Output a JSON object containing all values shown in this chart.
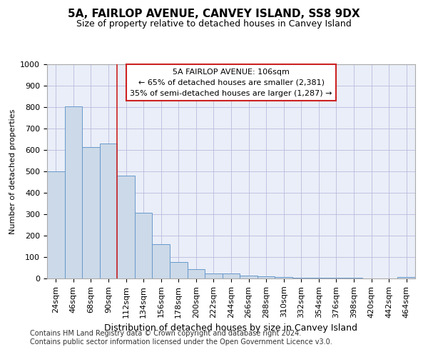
{
  "title1": "5A, FAIRLOP AVENUE, CANVEY ISLAND, SS8 9DX",
  "title2": "Size of property relative to detached houses in Canvey Island",
  "xlabel": "Distribution of detached houses by size in Canvey Island",
  "ylabel": "Number of detached properties",
  "footnote1": "Contains HM Land Registry data © Crown copyright and database right 2024.",
  "footnote2": "Contains public sector information licensed under the Open Government Licence v3.0.",
  "categories": [
    "24sqm",
    "46sqm",
    "68sqm",
    "90sqm",
    "112sqm",
    "134sqm",
    "156sqm",
    "178sqm",
    "200sqm",
    "222sqm",
    "244sqm",
    "266sqm",
    "288sqm",
    "310sqm",
    "332sqm",
    "354sqm",
    "376sqm",
    "398sqm",
    "420sqm",
    "442sqm",
    "464sqm"
  ],
  "values": [
    500,
    805,
    615,
    630,
    480,
    307,
    160,
    78,
    44,
    22,
    22,
    15,
    10,
    8,
    5,
    4,
    2,
    2,
    1,
    1,
    8
  ],
  "bar_color": "#ccd9e8",
  "bar_edge_color": "#6699cc",
  "vline_x_index": 4,
  "vline_color": "#cc2222",
  "annotation_title": "5A FAIRLOP AVENUE: 106sqm",
  "annotation_line1": "← 65% of detached houses are smaller (2,381)",
  "annotation_line2": "35% of semi-detached houses are larger (1,287) →",
  "annotation_box_facecolor": "#ffffff",
  "annotation_box_edgecolor": "#cc2222",
  "ylim": [
    0,
    1000
  ],
  "yticks": [
    0,
    100,
    200,
    300,
    400,
    500,
    600,
    700,
    800,
    900,
    1000
  ],
  "grid_color": "#bbbbdd",
  "bg_color": "#eaeef8",
  "title1_fontsize": 11,
  "title2_fontsize": 9,
  "ylabel_fontsize": 8,
  "xlabel_fontsize": 9,
  "tick_fontsize": 8,
  "footnote_fontsize": 7
}
